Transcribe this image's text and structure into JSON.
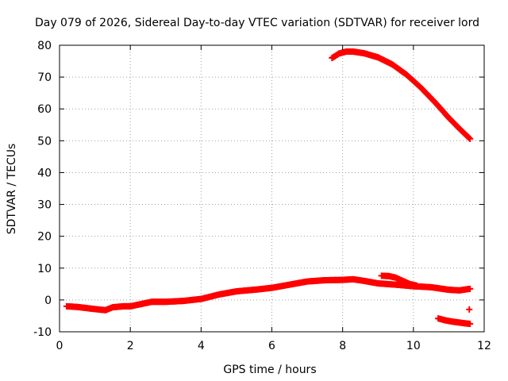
{
  "chart_data": {
    "type": "scatter",
    "title": "Day 079 of 2026, Sidereal Day-to-day VTEC variation (SDTVAR) for receiver lord",
    "xlabel": "GPS time / hours",
    "ylabel": "SDTVAR / TECUs",
    "xlim": [
      0,
      12
    ],
    "ylim": [
      -10,
      80
    ],
    "xticks": [
      0,
      2,
      4,
      6,
      8,
      10,
      12
    ],
    "yticks": [
      -10,
      0,
      10,
      20,
      30,
      40,
      50,
      60,
      70,
      80
    ],
    "grid": true,
    "marker": "+",
    "series": [
      {
        "name": "main",
        "color": "#ff0000",
        "x": [
          0.2,
          0.5,
          0.8,
          1.1,
          1.3,
          1.5,
          1.8,
          2.0,
          2.3,
          2.6,
          3.0,
          3.5,
          4.0,
          4.5,
          5.0,
          5.5,
          6.0,
          6.5,
          7.0,
          7.5,
          8.0,
          8.3,
          8.6,
          9.0,
          9.5,
          10.0,
          10.5,
          11.0,
          11.3,
          11.6
        ],
        "y": [
          -2,
          -2.2,
          -2.6,
          -3.0,
          -3.2,
          -2.3,
          -2.0,
          -2.0,
          -1.3,
          -0.6,
          -0.6,
          -0.3,
          0.3,
          1.7,
          2.7,
          3.2,
          3.8,
          4.8,
          5.8,
          6.2,
          6.3,
          6.5,
          6.0,
          5.2,
          4.8,
          4.3,
          4.0,
          3.2,
          3.0,
          3.5
        ]
      },
      {
        "name": "high arc",
        "color": "#ff0000",
        "x": [
          7.7,
          7.9,
          8.1,
          8.3,
          8.6,
          9.0,
          9.4,
          9.8,
          10.2,
          10.6,
          11.0,
          11.3,
          11.6
        ],
        "y": [
          76,
          77.4,
          78.0,
          78.0,
          77.5,
          76.2,
          74.0,
          70.8,
          66.8,
          62.2,
          57.2,
          53.8,
          50.6
        ]
      },
      {
        "name": "bump segment",
        "color": "#ff0000",
        "x": [
          9.1,
          9.3,
          9.5,
          9.7,
          9.9,
          10.1
        ],
        "y": [
          7.6,
          7.5,
          7.0,
          6.0,
          5.0,
          4.5
        ]
      },
      {
        "name": "low segment",
        "color": "#ff0000",
        "x": [
          10.7,
          10.9,
          11.1,
          11.3,
          11.5,
          11.6
        ],
        "y": [
          -5.8,
          -6.4,
          -6.8,
          -7.1,
          -7.4,
          -7.5
        ]
      },
      {
        "name": "isolated",
        "color": "#ff0000",
        "x": [
          11.58
        ],
        "y": [
          -3.0
        ]
      }
    ]
  }
}
